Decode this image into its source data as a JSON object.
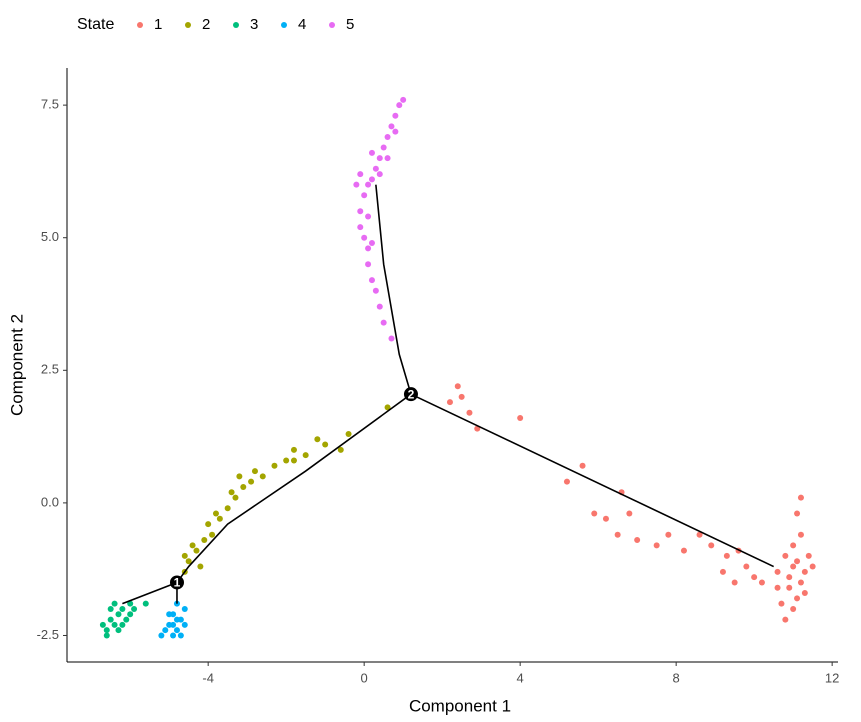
{
  "chart_data": {
    "type": "scatter",
    "xlabel": "Component 1",
    "ylabel": "Component 2",
    "legend_title": "State",
    "legend_position": "top",
    "xlim": [
      -7.62,
      12.15
    ],
    "xticks": [
      -4,
      0,
      4,
      8,
      12
    ],
    "ylim": [
      -3.0,
      8.2
    ],
    "yticks": [
      7.5,
      {
        "value": 5,
        "label": "5.0"
      },
      2.5,
      {
        "value": 0,
        "label": "0.0"
      },
      -2.5
    ],
    "series": [
      {
        "name": "1",
        "color": "#F8766D",
        "x": [
          2.4,
          2.5,
          2.2,
          2.7,
          2.9,
          4,
          5.6,
          5.2,
          5.9,
          6.2,
          6.6,
          6.8,
          6.5,
          7,
          7.5,
          7.8,
          8.2,
          8.6,
          8.9,
          9.3,
          9.6,
          9.8,
          9.2,
          9.5,
          10.0,
          10.2,
          10.6,
          10.8,
          11,
          11.2,
          11.4,
          11.1,
          10.9,
          10.7,
          11.3,
          11.5,
          10.8,
          11,
          11.2,
          11.1,
          11.2,
          11.0,
          10.6,
          11.3,
          10.9,
          11.1
        ],
        "y": [
          2.2,
          2.0,
          1.9,
          1.7,
          1.4,
          1.6,
          0.7,
          0.4,
          -0.2,
          -0.3,
          0.2,
          -0.2,
          -0.6,
          -0.7,
          -0.8,
          -0.6,
          -0.9,
          -0.6,
          -0.8,
          -1.0,
          -0.9,
          -1.2,
          -1.3,
          -1.5,
          -1.4,
          -1.5,
          -1.3,
          -1.0,
          -1.2,
          -1.5,
          -1.0,
          -1.8,
          -1.6,
          -1.9,
          -1.3,
          -1.2,
          -2.2,
          -2.0,
          -0.6,
          -0.2,
          0.1,
          -0.8,
          -1.6,
          -1.7,
          -1.4,
          -1.1
        ]
      },
      {
        "name": "2",
        "color": "#A3A500",
        "x": [
          -4.7,
          -4.6,
          -4.5,
          -4.3,
          -4.1,
          -3.9,
          -4.0,
          -3.7,
          -3.5,
          -3.3,
          -3.1,
          -2.9,
          -3.4,
          -3.8,
          -4.4,
          -3.2,
          -2.6,
          -2.3,
          -2.0,
          -1.8,
          -1.5,
          -1.2,
          -1.0,
          -0.6,
          -0.4,
          0.6,
          -1.8,
          -2.8,
          -4.2,
          -4.6
        ],
        "y": [
          -1.5,
          -1.3,
          -1.1,
          -0.9,
          -0.7,
          -0.6,
          -0.4,
          -0.3,
          -0.1,
          0.1,
          0.3,
          0.4,
          0.2,
          -0.2,
          -0.8,
          0.5,
          0.5,
          0.7,
          0.8,
          1.0,
          0.9,
          1.2,
          1.1,
          1.0,
          1.3,
          1.8,
          0.8,
          0.6,
          -1.2,
          -1.0
        ]
      },
      {
        "name": "3",
        "color": "#00BF7D",
        "x": [
          -6.6,
          -6.5,
          -6.4,
          -6.3,
          -6.2,
          -6.5,
          -6.1,
          -6.0,
          -5.9,
          -6.6,
          -6.3,
          -6.4,
          -6.2,
          -6.7,
          -5.6,
          -6.0
        ],
        "y": [
          -2.4,
          -2.2,
          -2.3,
          -2.1,
          -2.0,
          -2.0,
          -2.2,
          -1.9,
          -2.0,
          -2.5,
          -2.4,
          -1.9,
          -2.3,
          -2.3,
          -1.9,
          -2.1
        ]
      },
      {
        "name": "4",
        "color": "#00B0F6",
        "x": [
          -5.0,
          -4.9,
          -4.8,
          -4.7,
          -4.9,
          -5.1,
          -4.6,
          -4.8,
          -5.0,
          -4.7,
          -4.6,
          -4.9,
          -5.2,
          -4.8
        ],
        "y": [
          -2.3,
          -2.1,
          -2.4,
          -2.2,
          -2.5,
          -2.4,
          -2.0,
          -1.9,
          -2.1,
          -2.5,
          -2.3,
          -2.3,
          -2.5,
          -2.2
        ]
      },
      {
        "name": "5",
        "color": "#E76BF3",
        "x": [
          1.0,
          0.9,
          0.8,
          0.7,
          0.6,
          0.5,
          0.4,
          0.3,
          0.2,
          0.1,
          -0.1,
          0.0,
          -0.1,
          -0.1,
          0.0,
          0.1,
          0.1,
          0.2,
          0.3,
          0.4,
          0.5,
          0.7,
          0.6,
          0.2,
          0.4,
          0.8,
          0.1,
          -0.2,
          0.2
        ],
        "y": [
          7.6,
          7.5,
          7.3,
          7.1,
          6.9,
          6.7,
          6.5,
          6.3,
          6.1,
          6.0,
          6.2,
          5.8,
          5.5,
          5.2,
          5.0,
          4.8,
          4.5,
          4.2,
          4.0,
          3.7,
          3.4,
          3.1,
          6.5,
          6.6,
          6.2,
          7.0,
          5.4,
          6.0,
          4.9
        ]
      }
    ],
    "trajectory": [
      {
        "x": [
          -6.2,
          -4.8
        ],
        "y": [
          -1.9,
          -1.5
        ]
      },
      {
        "x": [
          -4.8,
          -4.8
        ],
        "y": [
          -1.5,
          -1.9
        ]
      },
      {
        "x": [
          -4.8,
          -4.5,
          -3.5,
          -1.5,
          1.2
        ],
        "y": [
          -1.5,
          -1.2,
          -0.4,
          0.6,
          2.05
        ]
      },
      {
        "x": [
          1.2,
          10.5
        ],
        "y": [
          2.05,
          -1.2
        ]
      },
      {
        "x": [
          1.2,
          0.9,
          0.5,
          0.3
        ],
        "y": [
          2.05,
          2.8,
          4.5,
          6.0
        ]
      }
    ],
    "nodes": [
      {
        "label": "1",
        "x": -4.8,
        "y": -1.5
      },
      {
        "label": "2",
        "x": 1.2,
        "y": 2.05
      }
    ]
  }
}
